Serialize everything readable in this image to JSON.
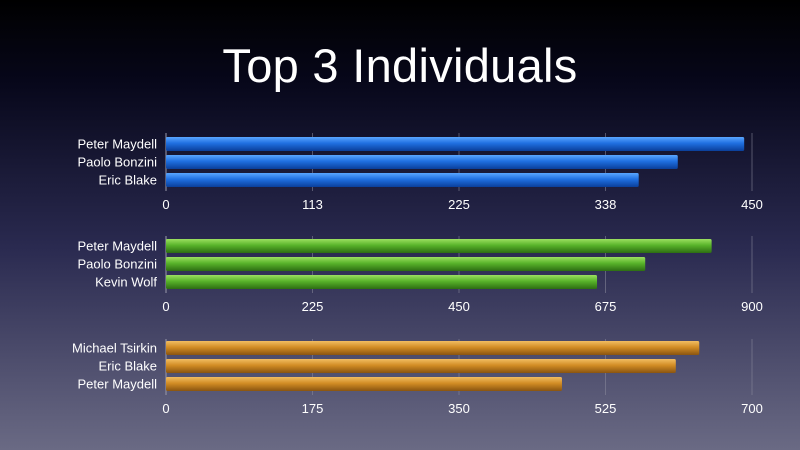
{
  "title": "Top 3 Individuals",
  "colors": {
    "blue": [
      "#5aa6ff",
      "#1f6fe0",
      "#0a3f9a"
    ],
    "green": [
      "#9be060",
      "#58b32a",
      "#2d6e12"
    ],
    "orange": [
      "#f2bd62",
      "#d28c24",
      "#8a5410"
    ]
  },
  "chart_data": [
    {
      "type": "bar",
      "orientation": "horizontal",
      "color": "blue",
      "categories": [
        "Peter Maydell",
        "Paolo Bonzini",
        "Eric Blake"
      ],
      "values": [
        444,
        393,
        363
      ],
      "xlim": [
        0,
        450
      ],
      "xticks": [
        "0",
        "113",
        "225",
        "338",
        "450"
      ],
      "grid": true
    },
    {
      "type": "bar",
      "orientation": "horizontal",
      "color": "green",
      "categories": [
        "Peter Maydell",
        "Paolo Bonzini",
        "Kevin Wolf"
      ],
      "values": [
        838,
        736,
        662
      ],
      "xlim": [
        0,
        900
      ],
      "xticks": [
        "0",
        "225",
        "450",
        "675",
        "900"
      ],
      "grid": true
    },
    {
      "type": "bar",
      "orientation": "horizontal",
      "color": "orange",
      "categories": [
        "Michael Tsirkin",
        "Eric Blake",
        "Peter Maydell"
      ],
      "values": [
        637,
        609,
        473
      ],
      "xlim": [
        0,
        700
      ],
      "xticks": [
        "0",
        "175",
        "350",
        "525",
        "700"
      ],
      "grid": true
    }
  ]
}
